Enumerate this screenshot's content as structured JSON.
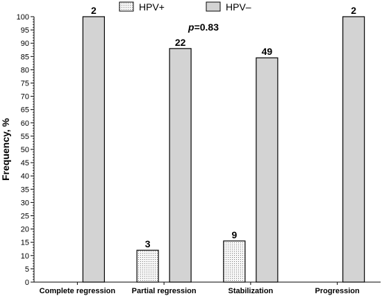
{
  "chart_data": {
    "type": "bar",
    "categories": [
      "Complete regression",
      "Partial regression",
      "Stabilization",
      "Progression"
    ],
    "series": [
      {
        "name": "HPV+",
        "values": [
          null,
          12,
          15.5,
          null
        ],
        "labels": [
          "",
          "3",
          "9",
          ""
        ],
        "pattern": "dotted",
        "color": "#f4f4f4"
      },
      {
        "name": "HPV–",
        "values": [
          100,
          88,
          84.5,
          100
        ],
        "labels": [
          "2",
          "22",
          "49",
          "2"
        ],
        "pattern": "solid",
        "color": "#d3d3d3"
      }
    ],
    "title": "",
    "xlabel": "",
    "ylabel": "Frequency, %",
    "ylim": [
      0,
      100
    ],
    "yticks": [
      0,
      5,
      10,
      15,
      20,
      25,
      30,
      35,
      40,
      45,
      50,
      55,
      60,
      65,
      70,
      75,
      80,
      85,
      90,
      95,
      100
    ],
    "minor_ticks_per_major": 4,
    "grid": false,
    "legend": "top-center",
    "annotation": {
      "prefix": "p",
      "text": "=0.83"
    }
  }
}
